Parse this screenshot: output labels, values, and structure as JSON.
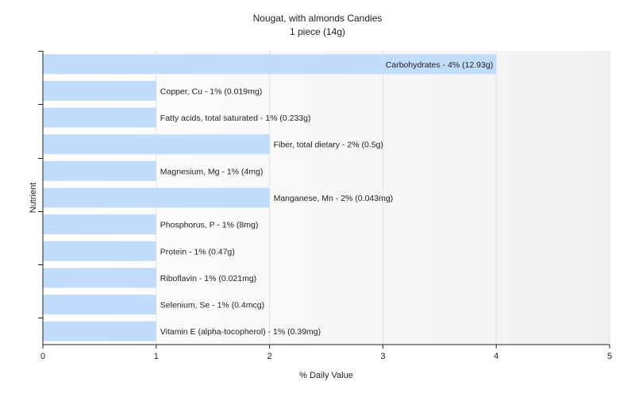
{
  "chart_data": {
    "type": "bar",
    "orientation": "horizontal",
    "title": "Nougat, with almonds Candies",
    "subtitle": "1 piece (14g)",
    "xlabel": "% Daily Value",
    "ylabel": "Nutrient",
    "xlim": [
      0,
      5
    ],
    "xticks": [
      "0",
      "1",
      "2",
      "3",
      "4",
      "5"
    ],
    "grid": true,
    "bar_color": "#c2dcfc",
    "categories": [
      "Carbohydrates",
      "Copper, Cu",
      "Fatty acids, total saturated",
      "Fiber, total dietary",
      "Magnesium, Mg",
      "Manganese, Mn",
      "Phosphorus, P",
      "Protein",
      "Riboflavin",
      "Selenium, Se",
      "Vitamin E (alpha-tocopherol)"
    ],
    "values": [
      4,
      1,
      1,
      2,
      1,
      2,
      1,
      1,
      1,
      1,
      1
    ],
    "labels": [
      "Carbohydrates - 4% (12.93g)",
      "Copper, Cu - 1% (0.019mg)",
      "Fatty acids, total saturated - 1% (0.233g)",
      "Fiber, total dietary - 2% (0.5g)",
      "Magnesium, Mg - 1% (4mg)",
      "Manganese, Mn - 2% (0.043mg)",
      "Phosphorus, P - 1% (8mg)",
      "Protein - 1% (0.47g)",
      "Riboflavin - 1% (0.021mg)",
      "Selenium, Se - 1% (0.4mcg)",
      "Vitamin E (alpha-tocopherol) - 1% (0.39mg)"
    ]
  }
}
